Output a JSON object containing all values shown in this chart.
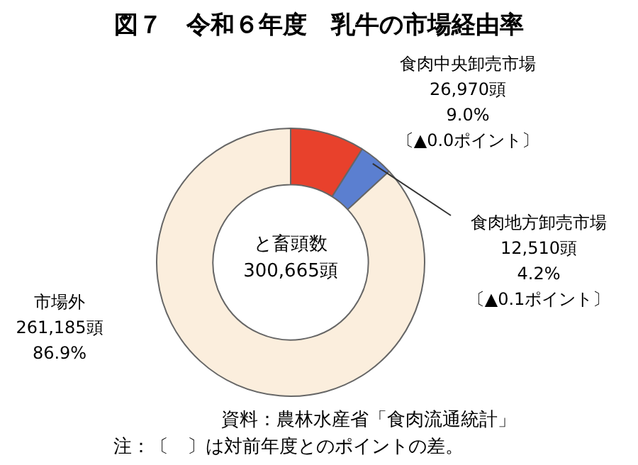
{
  "chart_data": {
    "type": "donut",
    "title": "図７　令和６年度　乳牛の市場経由率",
    "categories": [
      "食肉中央卸売市場",
      "食肉地方卸売市場",
      "市場外"
    ],
    "values": [
      26970,
      12510,
      261185
    ],
    "colors": [
      "#e8412c",
      "#5b7fd0",
      "#fbeedd"
    ],
    "value_labels": [
      "26,970頭\n9.0%\n〔▲0.0ポイント〕",
      "12,510頭\n4.2%\n〔▲0.1ポイント〕",
      "261,185頭\n86.9%"
    ],
    "annotations": [
      "と畜頭数\n300,665頭",
      "資料：農林水産省「食肉流通統計」",
      "注：〔　〕は対前年度とのポイントの差。"
    ],
    "legend": false
  }
}
